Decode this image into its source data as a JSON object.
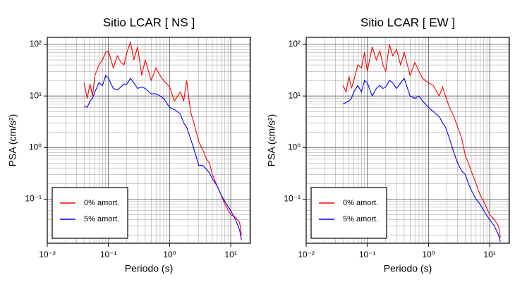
{
  "chart_data": [
    {
      "type": "line",
      "title": "Sitio LCAR [ NS ]",
      "xlabel": "Periodo (s)",
      "ylabel": "PSA (cm/s²)",
      "x": [
        0.04,
        0.045,
        0.05,
        0.055,
        0.06,
        0.07,
        0.08,
        0.09,
        0.1,
        0.12,
        0.14,
        0.16,
        0.18,
        0.2,
        0.23,
        0.26,
        0.3,
        0.35,
        0.4,
        0.5,
        0.6,
        0.7,
        0.8,
        1.0,
        1.2,
        1.5,
        1.7,
        1.9,
        2.2,
        2.6,
        3.0,
        3.5,
        4.0,
        4.5,
        5,
        6,
        7,
        8,
        10,
        12,
        14,
        15
      ],
      "series": [
        {
          "name": "0% amort.",
          "color": "#ff0000",
          "values": [
            18,
            9,
            17,
            10,
            25,
            40,
            50,
            70,
            75,
            35,
            60,
            45,
            40,
            70,
            110,
            50,
            90,
            25,
            50,
            20,
            35,
            25,
            20,
            15,
            8,
            12,
            8,
            20,
            5,
            2.5,
            1.3,
            0.9,
            0.6,
            0.5,
            0.3,
            0.18,
            0.12,
            0.08,
            0.05,
            0.045,
            0.035,
            0.02
          ]
        },
        {
          "name": "5% amort.",
          "color": "#0000ff",
          "values": [
            6.5,
            6,
            8,
            9,
            12,
            18,
            16,
            25,
            22,
            14,
            13,
            15,
            17,
            17,
            22,
            18,
            14,
            15,
            14,
            11,
            11,
            10,
            9,
            6,
            5.5,
            4.5,
            3,
            2.5,
            1.5,
            0.8,
            0.45,
            0.45,
            0.38,
            0.32,
            0.25,
            0.18,
            0.12,
            0.09,
            0.06,
            0.04,
            0.025,
            0.016
          ]
        }
      ],
      "xlim": [
        0.01,
        21
      ],
      "ylim": [
        0.014,
        137
      ],
      "log_x": true,
      "log_y": true,
      "grid": true,
      "legend": "lower left",
      "xticks": [
        {
          "value": 0.01,
          "label": "10⁻²"
        },
        {
          "value": 0.1,
          "label": "10⁻¹"
        },
        {
          "value": 1,
          "label": "10⁰"
        },
        {
          "value": 10,
          "label": "10¹"
        }
      ],
      "yticks": [
        {
          "value": 0.1,
          "label": "10⁻¹"
        },
        {
          "value": 1,
          "label": "10⁰"
        },
        {
          "value": 10,
          "label": "10¹"
        },
        {
          "value": 100,
          "label": "10²"
        }
      ]
    },
    {
      "type": "line",
      "title": "Sitio LCAR [ EW ]",
      "xlabel": "Periodo (s)",
      "ylabel": "PSA (cm/s²)",
      "x": [
        0.04,
        0.045,
        0.05,
        0.055,
        0.06,
        0.07,
        0.08,
        0.09,
        0.1,
        0.12,
        0.14,
        0.16,
        0.18,
        0.2,
        0.23,
        0.26,
        0.3,
        0.35,
        0.4,
        0.5,
        0.6,
        0.7,
        0.8,
        1.0,
        1.2,
        1.5,
        1.7,
        1.9,
        2.2,
        2.6,
        3.0,
        3.5,
        4.0,
        4.5,
        5,
        6,
        7,
        8,
        10,
        12,
        14,
        15
      ],
      "series": [
        {
          "name": "0% amort.",
          "color": "#ff0000",
          "values": [
            16,
            12,
            24,
            14,
            20,
            40,
            35,
            70,
            30,
            90,
            50,
            75,
            40,
            30,
            100,
            60,
            80,
            40,
            70,
            25,
            45,
            30,
            22,
            18,
            16,
            10,
            15,
            10,
            6,
            4,
            2.5,
            1.5,
            0.7,
            0.5,
            0.35,
            0.2,
            0.12,
            0.09,
            0.05,
            0.04,
            0.03,
            0.018
          ]
        },
        {
          "name": "5% amort.",
          "color": "#0000ff",
          "values": [
            7,
            7.5,
            8,
            9,
            12,
            16,
            12,
            20,
            18,
            10,
            14,
            16,
            14,
            15,
            20,
            18,
            14,
            18,
            22,
            10,
            9,
            10,
            8,
            6,
            5,
            4,
            3,
            2.5,
            1.5,
            0.8,
            0.5,
            0.35,
            0.3,
            0.2,
            0.15,
            0.1,
            0.08,
            0.06,
            0.04,
            0.03,
            0.02,
            0.015
          ]
        }
      ],
      "xlim": [
        0.01,
        21
      ],
      "ylim": [
        0.014,
        137
      ],
      "log_x": true,
      "log_y": true,
      "grid": true,
      "legend": "lower left",
      "xticks": [
        {
          "value": 0.01,
          "label": "10⁻²"
        },
        {
          "value": 0.1,
          "label": "10⁻¹"
        },
        {
          "value": 1,
          "label": "10⁰"
        },
        {
          "value": 10,
          "label": "10¹"
        }
      ],
      "yticks": [
        {
          "value": 0.1,
          "label": "10⁻¹"
        },
        {
          "value": 1,
          "label": "10⁰"
        },
        {
          "value": 10,
          "label": "10¹"
        },
        {
          "value": 100,
          "label": "10²"
        }
      ]
    }
  ]
}
